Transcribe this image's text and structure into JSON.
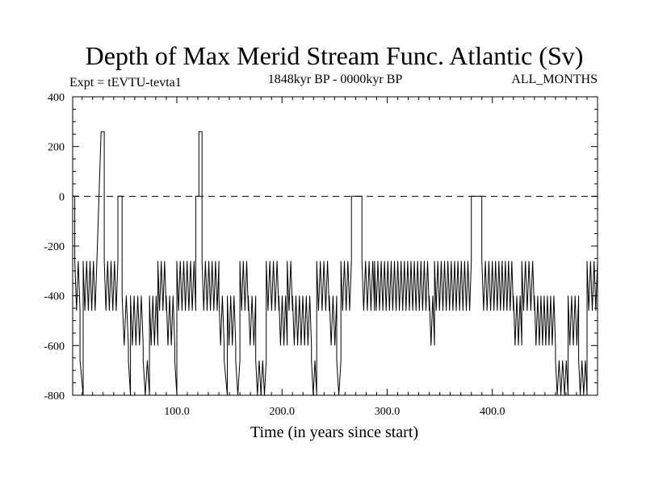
{
  "chart_data": {
    "type": "line",
    "title": "Depth of Max Merid Stream Func. Atlantic (Sv)",
    "subtitle_left": "Expt = tEVTU-tevta1",
    "subtitle_center": "1848kyr BP - 0000kyr BP",
    "subtitle_right": "ALL_MONTHS",
    "xlabel": "Time (in years since start)",
    "ylabel": "",
    "xlim": [
      1,
      500
    ],
    "ylim": [
      -800,
      400
    ],
    "x_ticks": [
      100,
      200,
      300,
      400
    ],
    "x_tick_labels": [
      "100.0",
      "200.0",
      "300.0",
      "400.0"
    ],
    "y_ticks": [
      -800,
      -600,
      -400,
      -200,
      0,
      200,
      400
    ],
    "y_tick_labels": [
      "-800",
      "-600",
      "-400",
      "-200",
      "0",
      "200",
      "400"
    ],
    "grid": false,
    "line_color": "#000000",
    "segments": [
      {
        "x": [
          1,
          3
        ],
        "y": 0
      },
      {
        "x": [
          3,
          8
        ],
        "y": -260
      },
      {
        "x": [
          8,
          11
        ],
        "y": -660
      },
      {
        "x": [
          11,
          24
        ],
        "y": -260
      },
      {
        "x": [
          28,
          31
        ],
        "y": 260
      },
      {
        "x": [
          31,
          44
        ],
        "y": -260
      },
      {
        "x": [
          44,
          48
        ],
        "y": 0
      },
      {
        "x": [
          48,
          54
        ],
        "y": -400
      },
      {
        "x": [
          54,
          56
        ],
        "y": -660
      },
      {
        "x": [
          56,
          68
        ],
        "y": -400
      },
      {
        "x": [
          68,
          74
        ],
        "y": -660
      },
      {
        "x": [
          74,
          82
        ],
        "y": -400
      },
      {
        "x": [
          82,
          90
        ],
        "y": -260
      },
      {
        "x": [
          90,
          98
        ],
        "y": -400
      },
      {
        "x": [
          98,
          100
        ],
        "y": -660
      },
      {
        "x": [
          100,
          118
        ],
        "y": -260
      },
      {
        "x": [
          118,
          121
        ],
        "y": 0
      },
      {
        "x": [
          121,
          124
        ],
        "y": 260
      },
      {
        "x": [
          124,
          140
        ],
        "y": -260
      },
      {
        "x": [
          140,
          145
        ],
        "y": -400
      },
      {
        "x": [
          145,
          148
        ],
        "y": -660
      },
      {
        "x": [
          148,
          156
        ],
        "y": -400
      },
      {
        "x": [
          156,
          160
        ],
        "y": -660
      },
      {
        "x": [
          160,
          168
        ],
        "y": -260
      },
      {
        "x": [
          168,
          175
        ],
        "y": -400
      },
      {
        "x": [
          175,
          185
        ],
        "y": -660
      },
      {
        "x": [
          185,
          197
        ],
        "y": -260
      },
      {
        "x": [
          197,
          205
        ],
        "y": -400
      },
      {
        "x": [
          205,
          210
        ],
        "y": -260
      },
      {
        "x": [
          210,
          228
        ],
        "y": -400
      },
      {
        "x": [
          228,
          233
        ],
        "y": -660
      },
      {
        "x": [
          233,
          245
        ],
        "y": -260
      },
      {
        "x": [
          245,
          252
        ],
        "y": -400
      },
      {
        "x": [
          252,
          256
        ],
        "y": -660
      },
      {
        "x": [
          256,
          266
        ],
        "y": -260
      },
      {
        "x": [
          266,
          276
        ],
        "y": 0
      },
      {
        "x": [
          276,
          288
        ],
        "y": -260
      },
      {
        "x": [
          288,
          340
        ],
        "y": -260
      },
      {
        "x": [
          340,
          345
        ],
        "y": -400
      },
      {
        "x": [
          345,
          380
        ],
        "y": -260
      },
      {
        "x": [
          380,
          390
        ],
        "y": 0
      },
      {
        "x": [
          390,
          400
        ],
        "y": -260
      },
      {
        "x": [
          400,
          420
        ],
        "y": -260
      },
      {
        "x": [
          420,
          428
        ],
        "y": -400
      },
      {
        "x": [
          428,
          440
        ],
        "y": -260
      },
      {
        "x": [
          440,
          460
        ],
        "y": -400
      },
      {
        "x": [
          460,
          472
        ],
        "y": -660
      },
      {
        "x": [
          472,
          482
        ],
        "y": -400
      },
      {
        "x": [
          482,
          490
        ],
        "y": -660
      },
      {
        "x": [
          490,
          500
        ],
        "y": -260
      }
    ],
    "baseline": {
      "y": 0,
      "style": "dashed"
    }
  }
}
